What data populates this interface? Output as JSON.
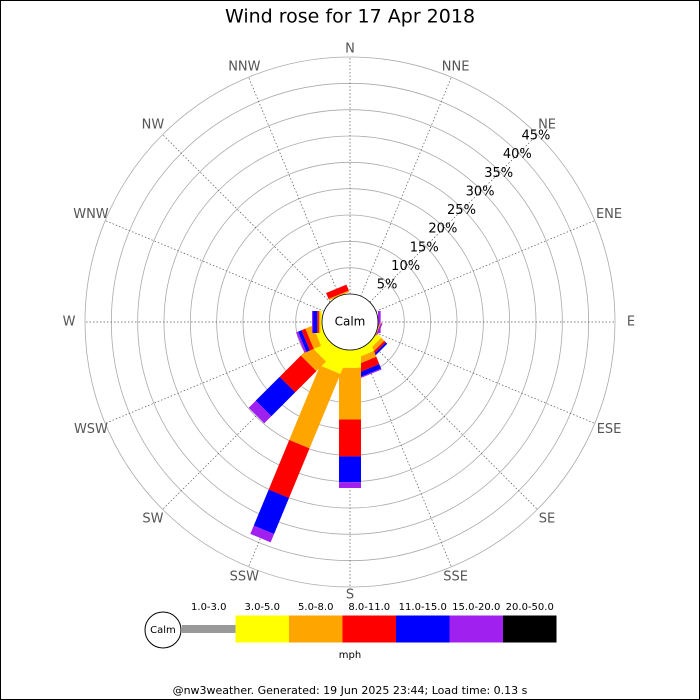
{
  "chart_data": {
    "type": "rose",
    "title": "Wind rose for 17 Apr 2018",
    "categories": [
      "N",
      "NNE",
      "NE",
      "ENE",
      "E",
      "ESE",
      "SE",
      "SSE",
      "S",
      "SSW",
      "SW",
      "WSW",
      "W",
      "WNW",
      "NW",
      "NNW"
    ],
    "series": [
      {
        "name": "1.0-3.0",
        "color": "#999999",
        "values": [
          0,
          0,
          0,
          0,
          0,
          0,
          0,
          0,
          0,
          0,
          0,
          0,
          0,
          0,
          0,
          0
        ]
      },
      {
        "name": "3.0-5.0",
        "color": "#ffff00",
        "values": [
          0,
          0,
          0,
          0,
          0,
          0,
          1.0,
          1.5,
          3.4,
          4.5,
          3.2,
          1.5,
          0.3,
          0,
          0,
          0
        ]
      },
      {
        "name": "5.0-8.0",
        "color": "#ffa500",
        "values": [
          0,
          0,
          0,
          0,
          0,
          0.2,
          0.8,
          1.2,
          9.8,
          15.3,
          2.6,
          1.5,
          0.3,
          0,
          0,
          0.3
        ]
      },
      {
        "name": "8.0-11.0",
        "color": "#ff0000",
        "values": [
          0,
          0,
          0,
          0,
          0,
          0,
          0.4,
          1.5,
          7.0,
          10.2,
          5.7,
          0.8,
          0.3,
          0,
          0,
          1.2
        ]
      },
      {
        "name": "11.0-15.0",
        "color": "#0000ff",
        "values": [
          0,
          0,
          0,
          0,
          0,
          0,
          0.4,
          0.9,
          4.9,
          7.4,
          6.4,
          0.7,
          0.8,
          0,
          0,
          0
        ]
      },
      {
        "name": "15.0-20.0",
        "color": "#a020f0",
        "values": [
          0,
          0,
          0,
          0,
          0.5,
          0.3,
          0,
          0.2,
          1.1,
          1.7,
          1.9,
          0.4,
          0.2,
          0,
          0,
          0
        ]
      },
      {
        "name": "20.0-50.0",
        "color": "#000000",
        "values": [
          0,
          0,
          0,
          0,
          0,
          0,
          0,
          0,
          0,
          0,
          0,
          0,
          0,
          0,
          0,
          0
        ]
      }
    ],
    "rlim": [
      0,
      45
    ],
    "rticks": [
      {
        "value": 5,
        "label": "5%"
      },
      {
        "value": 10,
        "label": "10%"
      },
      {
        "value": 15,
        "label": "15%"
      },
      {
        "value": 20,
        "label": "20%"
      },
      {
        "value": 25,
        "label": "25%"
      },
      {
        "value": 30,
        "label": "30%"
      },
      {
        "value": 35,
        "label": "35%"
      },
      {
        "value": 40,
        "label": "40%"
      },
      {
        "value": 45,
        "label": "45%"
      }
    ],
    "calm_label": "Calm",
    "legend_unit": "mph"
  },
  "footer": "@nw3weather. Generated: 19 Jun 2025 23:44; Load time: 0.13 s"
}
